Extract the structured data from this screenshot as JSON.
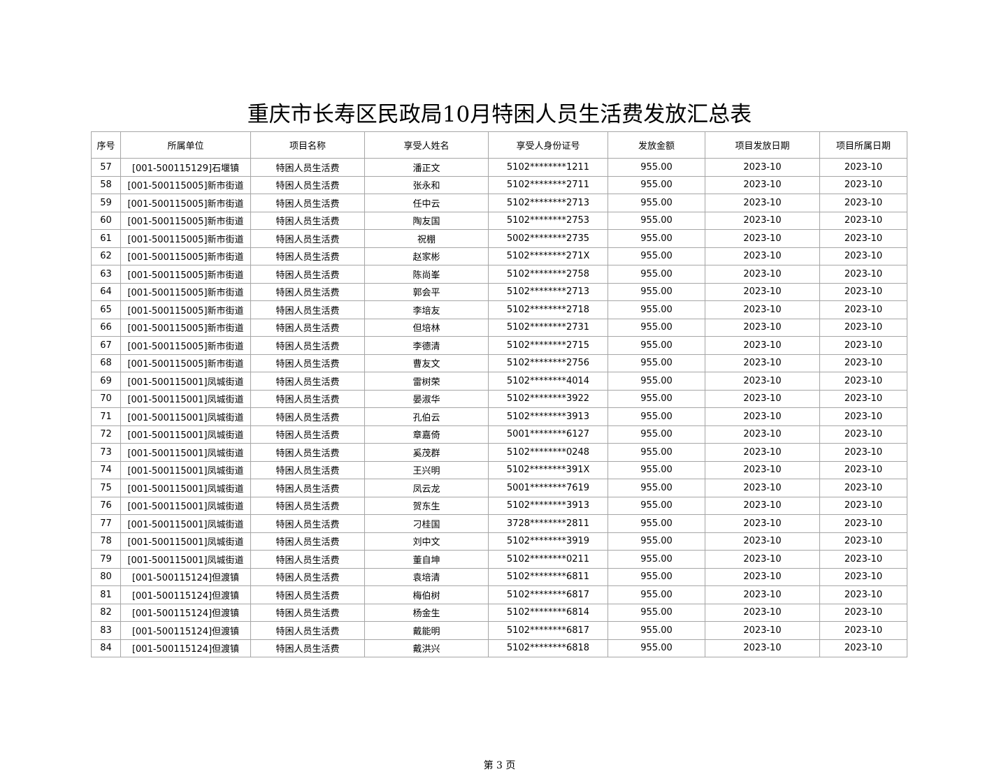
{
  "title": "重庆市长寿区民政局10月特困人员生活费发放汇总表",
  "columns": [
    "序号",
    "所属单位",
    "项目名称",
    "享受人姓名",
    "享受人身份证号",
    "发放金额",
    "项目发放日期",
    "项目所属日期"
  ],
  "rows": [
    [
      "57",
      "[001-500115129]石堰镇",
      "特困人员生活费",
      "潘正文",
      "5102********1211",
      "955.00",
      "2023-10",
      "2023-10"
    ],
    [
      "58",
      "[001-500115005]新市街道",
      "特困人员生活费",
      "张永和",
      "5102********2711",
      "955.00",
      "2023-10",
      "2023-10"
    ],
    [
      "59",
      "[001-500115005]新市街道",
      "特困人员生活费",
      "任中云",
      "5102********2713",
      "955.00",
      "2023-10",
      "2023-10"
    ],
    [
      "60",
      "[001-500115005]新市街道",
      "特困人员生活费",
      "陶友国",
      "5102********2753",
      "955.00",
      "2023-10",
      "2023-10"
    ],
    [
      "61",
      "[001-500115005]新市街道",
      "特困人员生活费",
      "祝棚",
      "5002********2735",
      "955.00",
      "2023-10",
      "2023-10"
    ],
    [
      "62",
      "[001-500115005]新市街道",
      "特困人员生活费",
      "赵家彬",
      "5102********271X",
      "955.00",
      "2023-10",
      "2023-10"
    ],
    [
      "63",
      "[001-500115005]新市街道",
      "特困人员生活费",
      "陈尚峯",
      "5102********2758",
      "955.00",
      "2023-10",
      "2023-10"
    ],
    [
      "64",
      "[001-500115005]新市街道",
      "特困人员生活费",
      "郭会平",
      "5102********2713",
      "955.00",
      "2023-10",
      "2023-10"
    ],
    [
      "65",
      "[001-500115005]新市街道",
      "特困人员生活费",
      "李培友",
      "5102********2718",
      "955.00",
      "2023-10",
      "2023-10"
    ],
    [
      "66",
      "[001-500115005]新市街道",
      "特困人员生活费",
      "但培林",
      "5102********2731",
      "955.00",
      "2023-10",
      "2023-10"
    ],
    [
      "67",
      "[001-500115005]新市街道",
      "特困人员生活费",
      "李德清",
      "5102********2715",
      "955.00",
      "2023-10",
      "2023-10"
    ],
    [
      "68",
      "[001-500115005]新市街道",
      "特困人员生活费",
      "曹友文",
      "5102********2756",
      "955.00",
      "2023-10",
      "2023-10"
    ],
    [
      "69",
      "[001-500115001]凤城街道",
      "特困人员生活费",
      "雷树荣",
      "5102********4014",
      "955.00",
      "2023-10",
      "2023-10"
    ],
    [
      "70",
      "[001-500115001]凤城街道",
      "特困人员生活费",
      "晏淑华",
      "5102********3922",
      "955.00",
      "2023-10",
      "2023-10"
    ],
    [
      "71",
      "[001-500115001]凤城街道",
      "特困人员生活费",
      "孔伯云",
      "5102********3913",
      "955.00",
      "2023-10",
      "2023-10"
    ],
    [
      "72",
      "[001-500115001]凤城街道",
      "特困人员生活费",
      "章嘉倚",
      "5001********6127",
      "955.00",
      "2023-10",
      "2023-10"
    ],
    [
      "73",
      "[001-500115001]凤城街道",
      "特困人员生活费",
      "奚茂群",
      "5102********0248",
      "955.00",
      "2023-10",
      "2023-10"
    ],
    [
      "74",
      "[001-500115001]凤城街道",
      "特困人员生活费",
      "王兴明",
      "5102********391X",
      "955.00",
      "2023-10",
      "2023-10"
    ],
    [
      "75",
      "[001-500115001]凤城街道",
      "特困人员生活费",
      "凤云龙",
      "5001********7619",
      "955.00",
      "2023-10",
      "2023-10"
    ],
    [
      "76",
      "[001-500115001]凤城街道",
      "特困人员生活费",
      "贺东生",
      "5102********3913",
      "955.00",
      "2023-10",
      "2023-10"
    ],
    [
      "77",
      "[001-500115001]凤城街道",
      "特困人员生活费",
      "刁桂国",
      "3728********2811",
      "955.00",
      "2023-10",
      "2023-10"
    ],
    [
      "78",
      "[001-500115001]凤城街道",
      "特困人员生活费",
      "刘中文",
      "5102********3919",
      "955.00",
      "2023-10",
      "2023-10"
    ],
    [
      "79",
      "[001-500115001]凤城街道",
      "特困人员生活费",
      "董自坤",
      "5102********0211",
      "955.00",
      "2023-10",
      "2023-10"
    ],
    [
      "80",
      "[001-500115124]但渡镇",
      "特困人员生活费",
      "袁培清",
      "5102********6811",
      "955.00",
      "2023-10",
      "2023-10"
    ],
    [
      "81",
      "[001-500115124]但渡镇",
      "特困人员生活费",
      "梅伯树",
      "5102********6817",
      "955.00",
      "2023-10",
      "2023-10"
    ],
    [
      "82",
      "[001-500115124]但渡镇",
      "特困人员生活费",
      "杨金生",
      "5102********6814",
      "955.00",
      "2023-10",
      "2023-10"
    ],
    [
      "83",
      "[001-500115124]但渡镇",
      "特困人员生活费",
      "戴能明",
      "5102********6817",
      "955.00",
      "2023-10",
      "2023-10"
    ],
    [
      "84",
      "[001-500115124]但渡镇",
      "特困人员生活费",
      "戴洪兴",
      "5102********6818",
      "955.00",
      "2023-10",
      "2023-10"
    ]
  ],
  "footer": "第 3 页"
}
